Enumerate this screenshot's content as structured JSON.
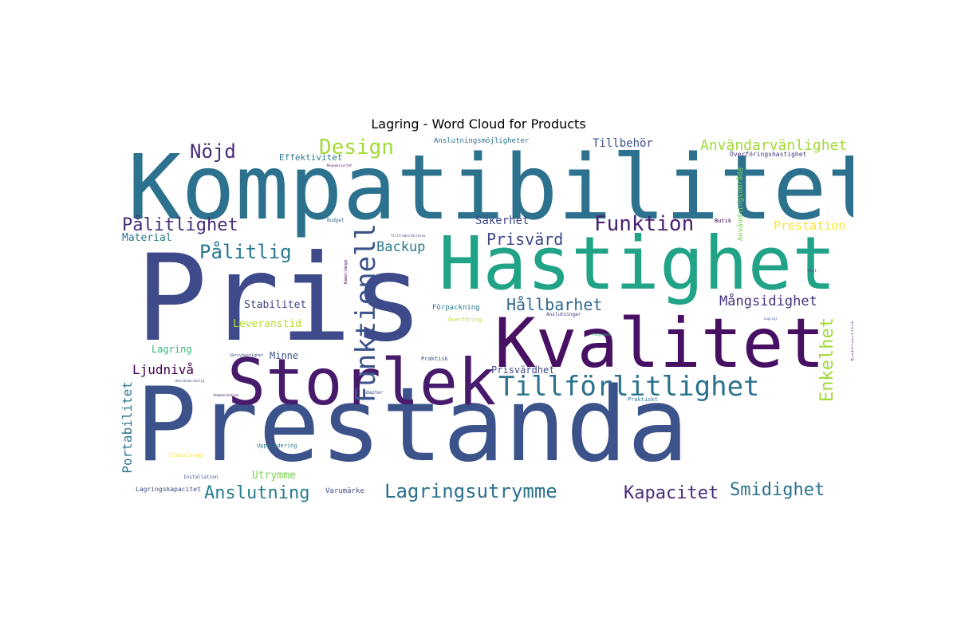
{
  "title": "Lagring - Word Cloud for Products",
  "words": [
    {
      "text": "Prestanda",
      "color": "#3b528b"
    },
    {
      "text": "Pris",
      "color": "#3e4a89"
    },
    {
      "text": "Kompatibilitet",
      "color": "#2c728e"
    },
    {
      "text": "Hastighet",
      "color": "#20a386"
    },
    {
      "text": "Kvalitet",
      "color": "#471063"
    },
    {
      "text": "Storlek",
      "color": "#481a6c"
    },
    {
      "text": "Tillförlitlighet",
      "color": "#2c728e"
    },
    {
      "text": "Funktionell",
      "color": "#3b528b"
    },
    {
      "text": "Design",
      "color": "#a2da37"
    },
    {
      "text": "Användarvänlighet",
      "color": "#a2da37"
    },
    {
      "text": "Nöjd",
      "color": "#472d7b"
    },
    {
      "text": "Pålitlighet",
      "color": "#472d7b"
    },
    {
      "text": "Pålitlig",
      "color": "#2a788e"
    },
    {
      "text": "Funktion",
      "color": "#482173"
    },
    {
      "text": "Prisvärd",
      "color": "#3e4a89"
    },
    {
      "text": "Hållbarhet",
      "color": "#31688e"
    },
    {
      "text": "Mångsidighet",
      "color": "#46337e"
    },
    {
      "text": "Backup",
      "color": "#2a788e"
    },
    {
      "text": "Lagringsutrymme",
      "color": "#2c728e"
    },
    {
      "text": "Anslutning",
      "color": "#287d8e"
    },
    {
      "text": "Kapacitet",
      "color": "#472d7b"
    },
    {
      "text": "Smidighet",
      "color": "#2c728e"
    },
    {
      "text": "Enkelhet",
      "color": "#a2da37"
    },
    {
      "text": "Portabilitet",
      "color": "#2a788e"
    },
    {
      "text": "Ljudnivå",
      "color": "#440154"
    },
    {
      "text": "Tillbehör",
      "color": "#3b528b"
    },
    {
      "text": "Prestation",
      "color": "#fde725"
    },
    {
      "text": "Säkerhet",
      "color": "#3e4a89"
    },
    {
      "text": "Material",
      "color": "#2a788e"
    },
    {
      "text": "Stabilitet",
      "color": "#414487"
    },
    {
      "text": "Leveranstid",
      "color": "#b5de2b"
    },
    {
      "text": "Utrymme",
      "color": "#7ad151"
    },
    {
      "text": "Lagring",
      "color": "#35b779"
    },
    {
      "text": "Minne",
      "color": "#3b528b"
    },
    {
      "text": "Prisvärdhet",
      "color": "#3e4a89"
    },
    {
      "text": "Effektivitet",
      "color": "#2a788e"
    },
    {
      "text": "Anslutningsmöjligheter",
      "color": "#2c728e"
    },
    {
      "text": "Förpackning",
      "color": "#2a788e"
    },
    {
      "text": "Överföring",
      "color": "#b5de2b"
    },
    {
      "text": "Anslutningar",
      "color": "#472d7b"
    },
    {
      "text": "Praktisk",
      "color": "#3e4a89"
    },
    {
      "text": "Praktiskt",
      "color": "#2a788e"
    },
    {
      "text": "Varumärke",
      "color": "#3e4a89"
    },
    {
      "text": "Lagringskapacitet",
      "color": "#3e4a89"
    },
    {
      "text": "Installation",
      "color": "#3b528b"
    },
    {
      "text": "Uppgradering",
      "color": "#2a788e"
    },
    {
      "text": "Slanslangd",
      "color": "#fde725"
    },
    {
      "text": "Användningsområde",
      "color": "#7ad151"
    },
    {
      "text": "Överföringshastighet",
      "color": "#46337e"
    },
    {
      "text": "Funktionalitet",
      "color": "#440154"
    },
    {
      "text": "Budget",
      "color": "#31688e"
    },
    {
      "text": "Butik",
      "color": "#440154"
    },
    {
      "text": "Skrivhastighet",
      "color": "#3e4a89"
    },
    {
      "text": "Adapter",
      "color": "#3b528b"
    },
    {
      "text": "Kabellängd",
      "color": "#440154"
    },
    {
      "text": "Vikt",
      "color": "#3e4a89"
    },
    {
      "text": "Lagligt",
      "color": "#3b528b"
    },
    {
      "text": "Kommunikation",
      "color": "#482173"
    },
    {
      "text": "Hanvändarvänlig",
      "color": "#3b528b"
    },
    {
      "text": "Tillfredsställelse",
      "color": "#46337e"
    },
    {
      "text": "Fungerande",
      "color": "#35b779"
    },
    {
      "text": "Responsivitet",
      "color": "#440154"
    }
  ]
}
